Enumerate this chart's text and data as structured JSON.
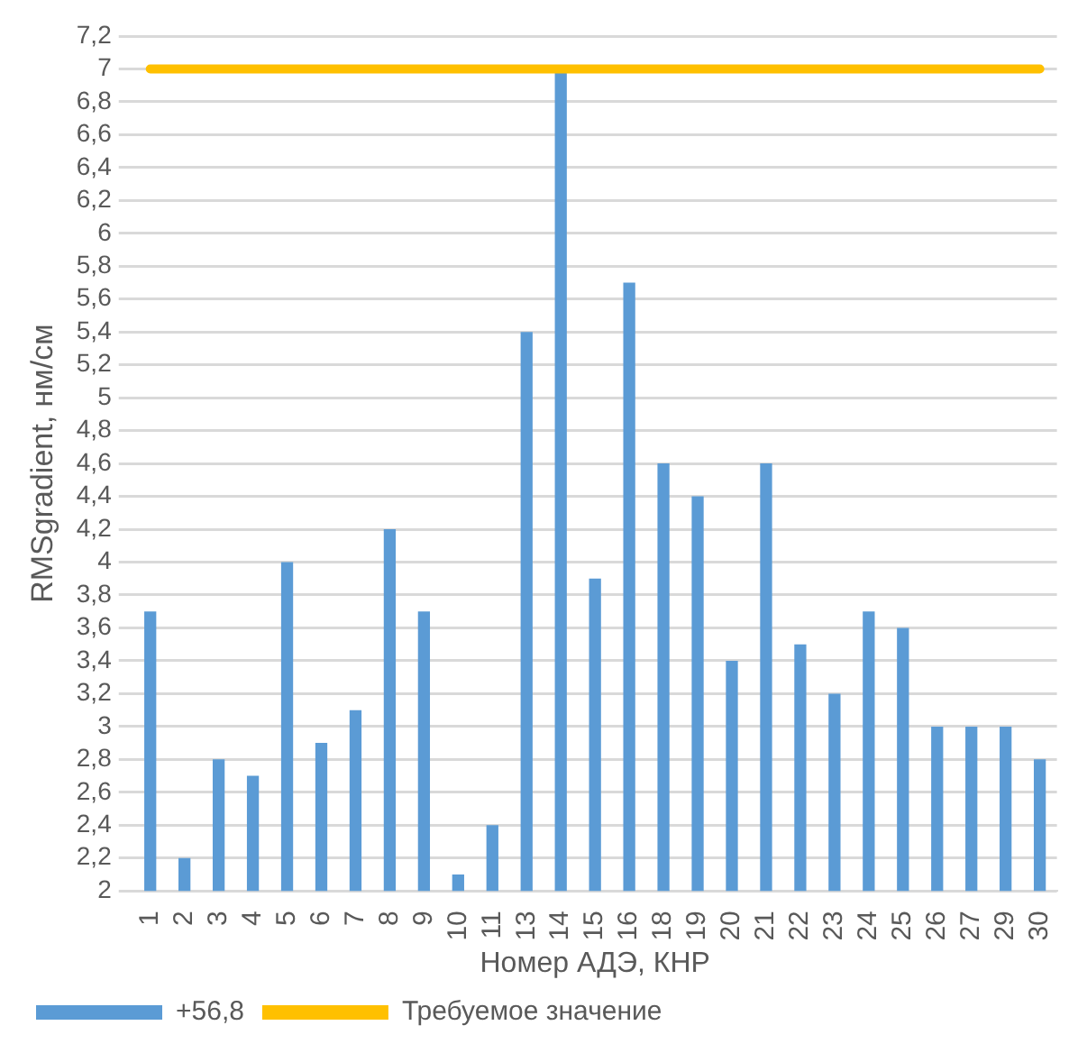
{
  "chart_data": {
    "type": "bar",
    "xlabel": "Номер АДЭ, КНР",
    "ylabel": "RMSgradient, нм/см",
    "categories": [
      "1",
      "2",
      "3",
      "4",
      "5",
      "6",
      "7",
      "8",
      "9",
      "10",
      "11",
      "13",
      "14",
      "15",
      "16",
      "18",
      "19",
      "20",
      "21",
      "22",
      "23",
      "24",
      "25",
      "26",
      "27",
      "29",
      "30"
    ],
    "series": [
      {
        "name": "+56,8",
        "color": "#5b9bd5",
        "values": [
          3.7,
          2.2,
          2.8,
          2.7,
          4.0,
          2.9,
          3.1,
          4.2,
          3.7,
          2.1,
          2.4,
          5.4,
          7.0,
          3.9,
          5.7,
          4.6,
          4.4,
          3.4,
          4.6,
          3.5,
          3.2,
          3.7,
          3.6,
          3.0,
          3.0,
          3.0,
          2.8
        ]
      },
      {
        "name": "Требуемое значение",
        "type": "line",
        "color": "#ffc000",
        "values": [
          7,
          7,
          7,
          7,
          7,
          7,
          7,
          7,
          7,
          7,
          7,
          7,
          7,
          7,
          7,
          7,
          7,
          7,
          7,
          7,
          7,
          7,
          7,
          7,
          7,
          7,
          7
        ]
      }
    ],
    "ylim": [
      2,
      7.2
    ],
    "yticks": [
      2,
      {
        "value": 2.2,
        "label": "2,2"
      },
      {
        "value": 2.4,
        "label": "2,4"
      },
      {
        "value": 2.6,
        "label": "2,6"
      },
      {
        "value": 2.8,
        "label": "2,8"
      },
      3,
      {
        "value": 3.2,
        "label": "3,2"
      },
      {
        "value": 3.4,
        "label": "3,4"
      },
      {
        "value": 3.6,
        "label": "3,6"
      },
      {
        "value": 3.8,
        "label": "3,8"
      },
      4,
      {
        "value": 4.2,
        "label": "4,2"
      },
      {
        "value": 4.4,
        "label": "4,4"
      },
      {
        "value": 4.6,
        "label": "4,6"
      },
      {
        "value": 4.8,
        "label": "4,8"
      },
      5,
      {
        "value": 5.2,
        "label": "5,2"
      },
      {
        "value": 5.4,
        "label": "5,4"
      },
      {
        "value": 5.6,
        "label": "5,6"
      },
      {
        "value": 5.8,
        "label": "5,8"
      },
      6,
      {
        "value": 6.2,
        "label": "6,2"
      },
      {
        "value": 6.4,
        "label": "6,4"
      },
      {
        "value": 6.6,
        "label": "6,6"
      },
      {
        "value": 6.8,
        "label": "6,8"
      },
      7,
      {
        "value": 7.2,
        "label": "7,2"
      }
    ],
    "grid": "y",
    "legend": "bottom",
    "marker": "none"
  }
}
